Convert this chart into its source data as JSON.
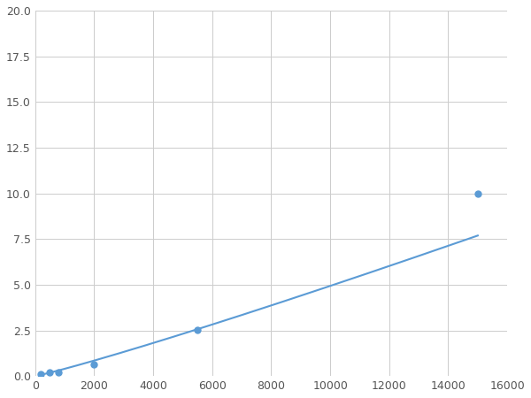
{
  "x": [
    200,
    500,
    800,
    2000,
    5500,
    15000
  ],
  "y": [
    0.1,
    0.18,
    0.22,
    0.65,
    2.55,
    10.0
  ],
  "line_color": "#5b9bd5",
  "marker_color": "#5b9bd5",
  "marker_size": 5,
  "linewidth": 1.5,
  "xlim": [
    0,
    16000
  ],
  "ylim": [
    0,
    20
  ],
  "xticks": [
    0,
    2000,
    4000,
    6000,
    8000,
    10000,
    12000,
    14000,
    16000
  ],
  "yticks": [
    0.0,
    2.5,
    5.0,
    7.5,
    10.0,
    12.5,
    15.0,
    17.5,
    20.0
  ],
  "grid": true,
  "background_color": "#ffffff",
  "figsize": [
    6.0,
    4.5
  ],
  "dpi": 100
}
